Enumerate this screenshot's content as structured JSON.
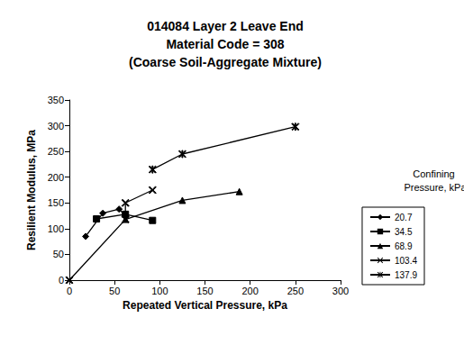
{
  "chart_data": {
    "type": "line",
    "title": "014084 Layer 2 Leave End\nMaterial Code = 308\n(Coarse Soil-Aggregate Mixture)",
    "x_label": "Repeated Vertical Pressure, kPa",
    "y_label": "Resilient Modulus, MPa",
    "legend_title": "Confining Pressure, kPa",
    "xlim": [
      0,
      300
    ],
    "xticks": [
      0,
      50,
      100,
      150,
      200,
      250,
      300
    ],
    "ylim": [
      0,
      350
    ],
    "yticks": [
      0,
      50,
      100,
      150,
      200,
      250,
      300,
      350
    ],
    "grid": false,
    "legend": "right",
    "series": [
      {
        "name": "20.7",
        "color": "#000000",
        "marker": "diamond",
        "x": [
          18,
          37,
          55,
          62
        ],
        "values": [
          85,
          130,
          138,
          125
        ]
      },
      {
        "name": "34.5",
        "color": "#000000",
        "marker": "square",
        "x": [
          30,
          62,
          92
        ],
        "values": [
          119,
          128,
          116
        ]
      },
      {
        "name": "68.9",
        "color": "#000000",
        "marker": "triangle",
        "x": [
          62,
          125,
          188
        ],
        "values": [
          118,
          155,
          172
        ]
      },
      {
        "name": "103.4",
        "color": "#000000",
        "marker": "x",
        "x": [
          0,
          62,
          62,
          92
        ],
        "values": [
          0,
          118,
          150,
          175
        ]
      },
      {
        "name": "137.9",
        "color": "#000000",
        "marker": "asterisk",
        "x": [
          92,
          125,
          250
        ],
        "values": [
          215,
          245,
          298
        ]
      }
    ]
  }
}
